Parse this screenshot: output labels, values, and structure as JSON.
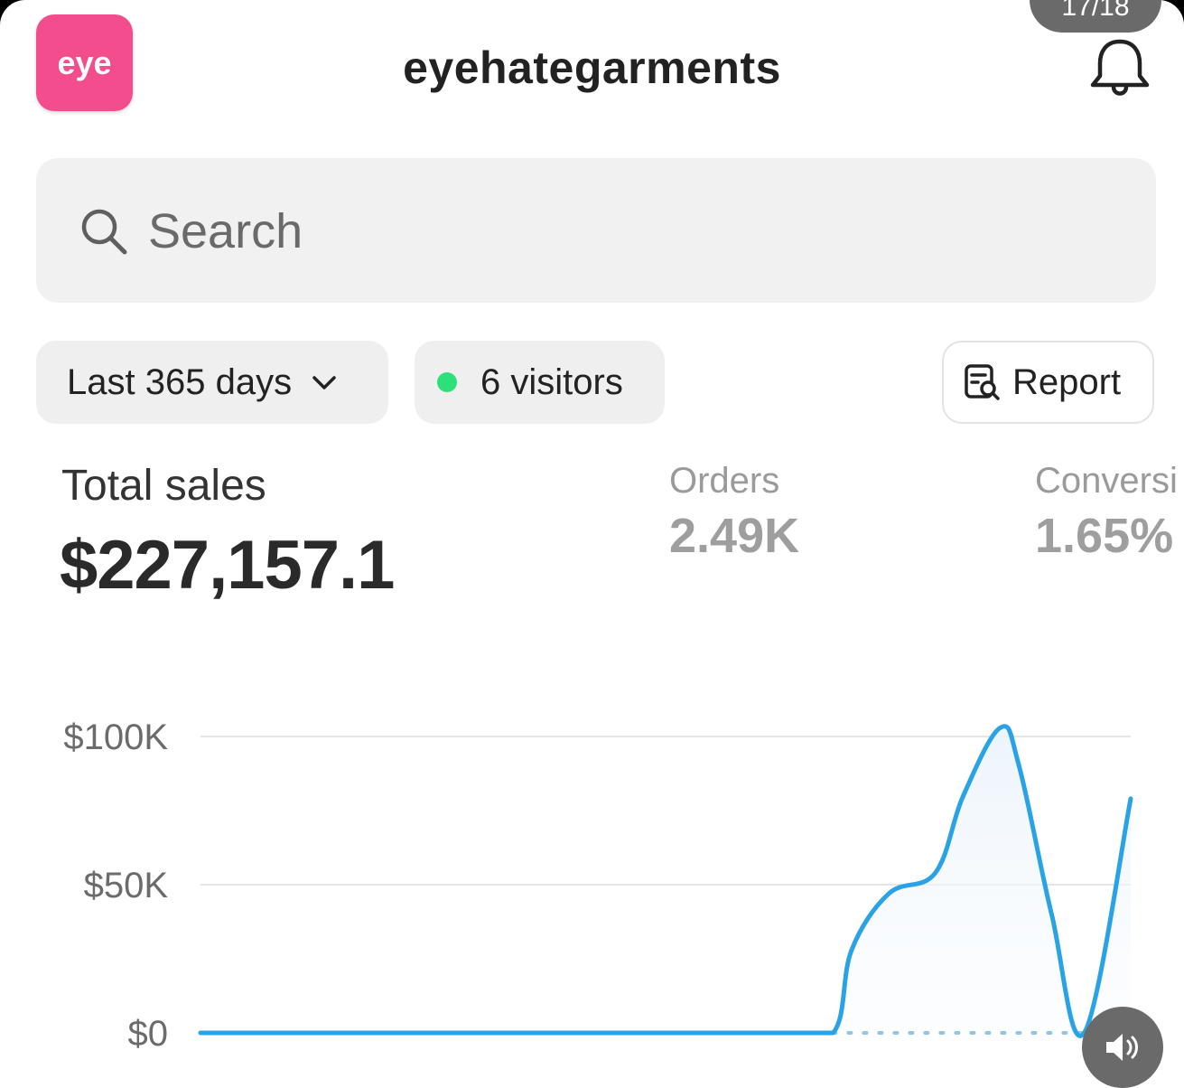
{
  "header": {
    "logo_text": "eye",
    "store_name": "eyehategarments",
    "page_counter": "17/18",
    "bell_icon": "bell-icon"
  },
  "search": {
    "placeholder": "Search",
    "value": ""
  },
  "filters": {
    "date_range": "Last 365 days",
    "visitors": "6 visitors",
    "report": "Report"
  },
  "metrics": {
    "total_sales_label": "Total sales",
    "total_sales_value": "$227,157.1",
    "orders_label": "Orders",
    "orders_value": "2.49K",
    "conversion_label": "Conversi",
    "conversion_value": "1.65%"
  },
  "colors": {
    "accent": "#f44d8d",
    "line": "#2aa3e6",
    "live_dot": "#2ee07a"
  },
  "chart_data": {
    "type": "line",
    "y_ticks": [
      "$100K",
      "$50K",
      "$0"
    ],
    "ylim": [
      0,
      100000
    ],
    "grid": true,
    "series": [
      {
        "x": [
          0,
          0.52,
          0.62,
          0.68,
          0.7,
          0.74,
          0.79,
          0.82,
          0.86,
          0.88,
          0.915,
          0.95,
          1.0
        ],
        "values": [
          0,
          0,
          0,
          0,
          28000,
          47000,
          54000,
          80000,
          103000,
          90000,
          40000,
          0,
          79000
        ]
      },
      {
        "style": "dotted",
        "x": [
          0.68,
          0.95
        ],
        "values": [
          0,
          0
        ]
      }
    ]
  }
}
